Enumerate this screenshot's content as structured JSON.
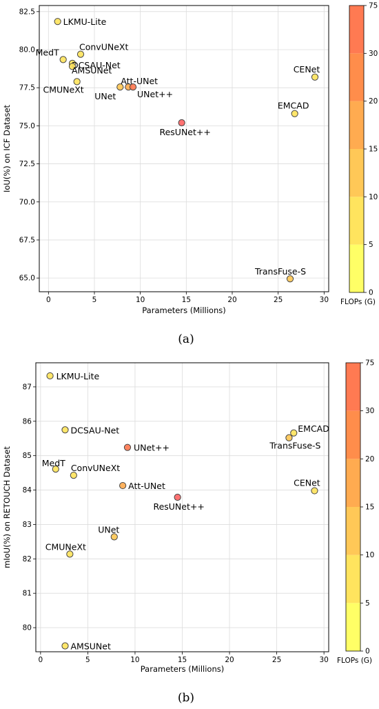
{
  "colorbar": {
    "label": "FLOPs (G)",
    "ticks": [
      "0",
      "5",
      "10",
      "15",
      "20",
      "30",
      "75"
    ],
    "colors": [
      "#ffff66",
      "#ffe45e",
      "#ffc857",
      "#ffab50",
      "#ff8d4b",
      "#ff7a52",
      "#ff6666"
    ]
  },
  "chart_data": [
    {
      "type": "scatter",
      "panel_label": "(a)",
      "xlabel": "Parameters (Millions)",
      "ylabel": "IoU(%) on ICF Dataset",
      "xlim": [
        -1,
        30.5
      ],
      "ylim": [
        64.1,
        82.9
      ],
      "xticks": [
        0,
        5,
        10,
        15,
        20,
        25,
        30
      ],
      "yticks": [
        65.0,
        67.5,
        70.0,
        72.5,
        75.0,
        77.5,
        80.0,
        82.5
      ],
      "ytick_labels": [
        "65.0",
        "67.5",
        "70.0",
        "72.5",
        "75.0",
        "77.5",
        "80.0",
        "82.5"
      ],
      "grid": true,
      "colorbar_label": "FLOPs (G)",
      "points": [
        {
          "name": "LKMU-Lite",
          "x": 1.0,
          "y": 81.85,
          "flops": 6,
          "color": "#ffe45e"
        },
        {
          "name": "ConvUNeXt",
          "x": 3.5,
          "y": 79.7,
          "flops": 7,
          "color": "#ffe45e"
        },
        {
          "name": "MedT",
          "x": 1.6,
          "y": 79.35,
          "flops": 8,
          "color": "#ffe45e"
        },
        {
          "name": "DCSAU-Net",
          "x": 2.6,
          "y": 79.1,
          "flops": 7,
          "color": "#ffe45e"
        },
        {
          "name": "AMSUNet",
          "x": 2.6,
          "y": 78.9,
          "flops": 6,
          "color": "#ffe45e"
        },
        {
          "name": "CMUNeXt",
          "x": 3.1,
          "y": 77.9,
          "flops": 7,
          "color": "#ffe45e"
        },
        {
          "name": "UNet",
          "x": 7.8,
          "y": 77.55,
          "flops": 13,
          "color": "#ffc857"
        },
        {
          "name": "Att-UNet",
          "x": 8.7,
          "y": 77.55,
          "flops": 17,
          "color": "#ffab50"
        },
        {
          "name": "UNet++",
          "x": 9.2,
          "y": 77.55,
          "flops": 28,
          "color": "#ff7a52"
        },
        {
          "name": "ResUNet++",
          "x": 14.5,
          "y": 75.2,
          "flops": 50,
          "color": "#ff6666"
        },
        {
          "name": "CENet",
          "x": 29.0,
          "y": 78.2,
          "flops": 9,
          "color": "#ffe45e"
        },
        {
          "name": "EMCAD",
          "x": 26.8,
          "y": 75.8,
          "flops": 8,
          "color": "#ffe45e"
        },
        {
          "name": "TransFuse-S",
          "x": 26.3,
          "y": 64.95,
          "flops": 11,
          "color": "#ffc857"
        }
      ]
    },
    {
      "type": "scatter",
      "panel_label": "(b)",
      "xlabel": "Parameters (Millions)",
      "ylabel": "mIoU(%) on RETOUCH Dataset",
      "xlim": [
        -0.5,
        30.5
      ],
      "ylim": [
        79.3,
        87.7
      ],
      "xticks": [
        0,
        5,
        10,
        15,
        20,
        25,
        30
      ],
      "yticks": [
        80,
        81,
        82,
        83,
        84,
        85,
        86,
        87
      ],
      "ytick_labels": [
        "80",
        "81",
        "82",
        "83",
        "84",
        "85",
        "86",
        "87"
      ],
      "grid": true,
      "colorbar_label": "FLOPs (G)",
      "points": [
        {
          "name": "LKMU-Lite",
          "x": 1.0,
          "y": 87.32,
          "flops": 6,
          "color": "#ffe45e"
        },
        {
          "name": "DCSAU-Net",
          "x": 2.6,
          "y": 85.75,
          "flops": 7,
          "color": "#ffe45e"
        },
        {
          "name": "UNet++",
          "x": 9.2,
          "y": 85.24,
          "flops": 28,
          "color": "#ff7a52"
        },
        {
          "name": "MedT",
          "x": 1.6,
          "y": 84.61,
          "flops": 8,
          "color": "#ffe45e"
        },
        {
          "name": "ConvUNeXt",
          "x": 3.5,
          "y": 84.43,
          "flops": 7,
          "color": "#ffe45e"
        },
        {
          "name": "Att-UNet",
          "x": 8.7,
          "y": 84.13,
          "flops": 17,
          "color": "#ffab50"
        },
        {
          "name": "ResUNet++",
          "x": 14.5,
          "y": 83.79,
          "flops": 50,
          "color": "#ff6666"
        },
        {
          "name": "UNet",
          "x": 7.8,
          "y": 82.64,
          "flops": 13,
          "color": "#ffc857"
        },
        {
          "name": "CMUNeXt",
          "x": 3.1,
          "y": 82.14,
          "flops": 7,
          "color": "#ffe45e"
        },
        {
          "name": "AMSUNet",
          "x": 2.6,
          "y": 79.47,
          "flops": 6,
          "color": "#ffe45e"
        },
        {
          "name": "EMCAD",
          "x": 26.8,
          "y": 85.66,
          "flops": 8,
          "color": "#ffe45e"
        },
        {
          "name": "TransFuse-S",
          "x": 26.3,
          "y": 85.52,
          "flops": 11,
          "color": "#ffc857"
        },
        {
          "name": "CENet",
          "x": 29.0,
          "y": 83.98,
          "flops": 9,
          "color": "#ffe45e"
        }
      ]
    }
  ]
}
